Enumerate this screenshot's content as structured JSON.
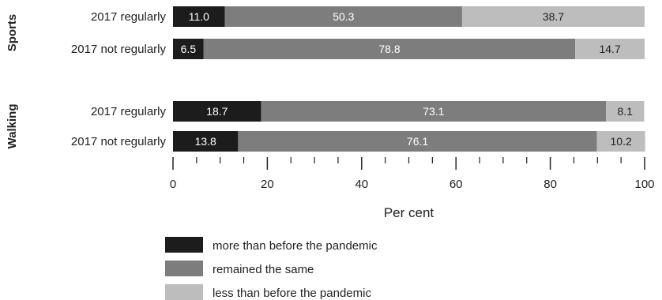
{
  "chart_data": {
    "type": "bar",
    "orientation": "horizontal",
    "stacked": true,
    "groups": [
      {
        "name": "Sports",
        "rows": [
          {
            "category": "2017 regularly",
            "values": [
              11.0,
              50.3,
              38.7
            ]
          },
          {
            "category": "2017 not regularly",
            "values": [
              6.5,
              78.8,
              14.7
            ]
          }
        ]
      },
      {
        "name": "Walking",
        "rows": [
          {
            "category": "2017 regularly",
            "values": [
              18.7,
              73.1,
              8.1
            ]
          },
          {
            "category": "2017 not regularly",
            "values": [
              13.8,
              76.1,
              10.2
            ]
          }
        ]
      }
    ],
    "series": [
      {
        "name": "more than before the pandemic",
        "color": "#1c1c1c",
        "label_color": "#ffffff"
      },
      {
        "name": "remained the same",
        "color": "#7d7d7d",
        "label_color": "#ffffff"
      },
      {
        "name": "less than before the pandemic",
        "color": "#bdbdbd",
        "label_color": "#222222"
      }
    ],
    "xlabel": "Per cent",
    "xlim": [
      0,
      100
    ],
    "xticks": [
      "0",
      "20",
      "40",
      "60",
      "80",
      "100"
    ],
    "minor_tick_step": 5,
    "grid": false,
    "legend_position": "bottom-center"
  }
}
